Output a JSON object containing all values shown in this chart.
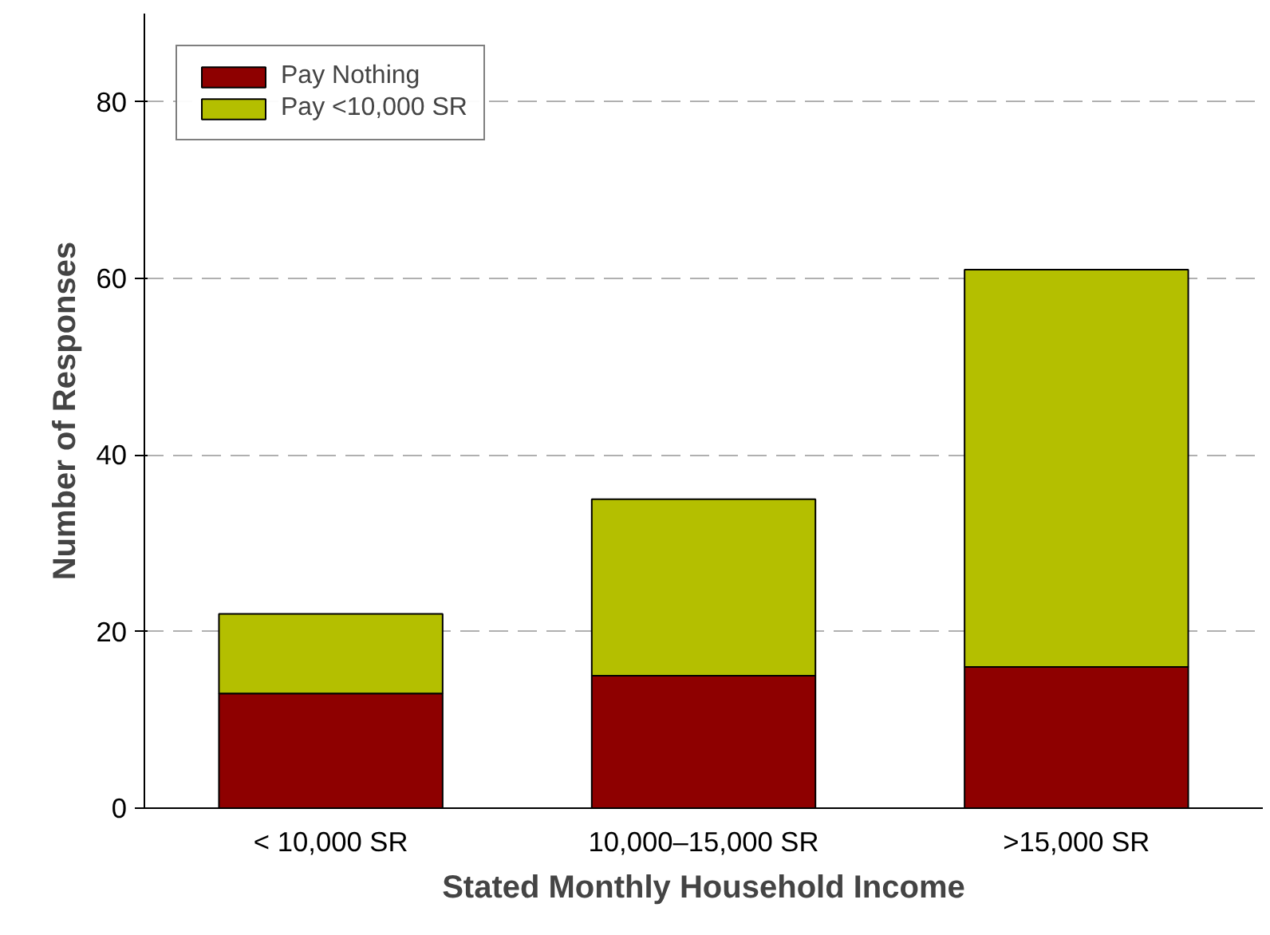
{
  "chart_data": {
    "type": "bar",
    "stacked": true,
    "xlabel": "Stated Monthly Household Income",
    "ylabel": "Number of Responses",
    "categories": [
      "< 10,000 SR",
      "10,000–15,000 SR",
      ">15,000 SR"
    ],
    "series": [
      {
        "name": "Pay Nothing",
        "color": "#8e0000",
        "values": [
          13,
          15,
          16
        ]
      },
      {
        "name": "Pay <10,000 SR",
        "color": "#b4bf00",
        "values": [
          9,
          20,
          45
        ]
      }
    ],
    "ylim": [
      0,
      90
    ],
    "yticks": [
      0,
      20,
      40,
      60,
      80
    ],
    "grid": "y",
    "legend": "top left"
  }
}
